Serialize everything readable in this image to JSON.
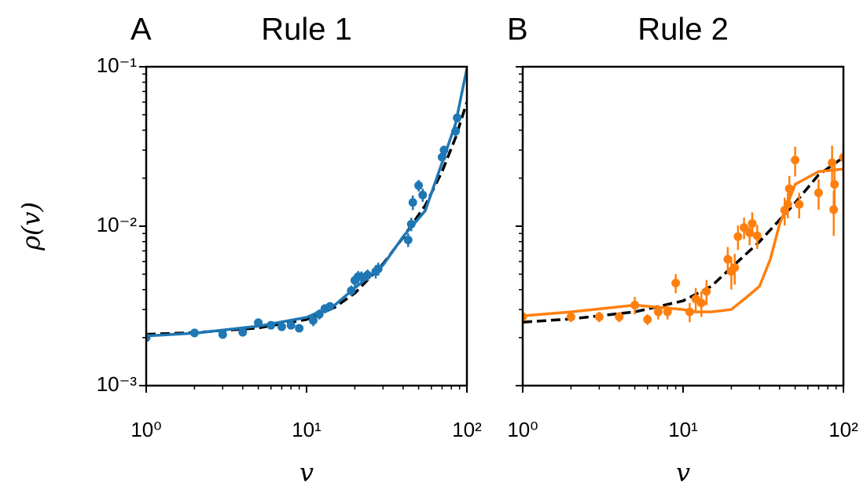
{
  "chart_data": [
    {
      "type": "scatter",
      "panel_label": "A",
      "title": "Rule 1",
      "xlabel": "v",
      "ylabel": "ρ(v)",
      "xscale": "log",
      "yscale": "log",
      "xlim": [
        1,
        100
      ],
      "ylim": [
        0.001,
        0.1
      ],
      "minor_ticks": true,
      "xticks": [
        {
          "value": 1,
          "label": "10⁰"
        },
        {
          "value": 10,
          "label": "10¹"
        },
        {
          "value": 100,
          "label": "10²"
        }
      ],
      "yticks": [
        {
          "value": 0.001,
          "label": "10⁻³"
        },
        {
          "value": 0.01,
          "label": "10⁻²"
        },
        {
          "value": 0.1,
          "label": "10⁻¹"
        }
      ],
      "series": [
        {
          "type": "line",
          "color": "#000000",
          "dashed": true,
          "x": [
            1,
            2,
            5,
            10,
            15,
            20,
            30,
            40,
            55,
            70,
            85,
            100
          ],
          "values": [
            0.0021,
            0.00215,
            0.0023,
            0.0026,
            0.0031,
            0.0038,
            0.0058,
            0.0085,
            0.0135,
            0.022,
            0.036,
            0.06
          ]
        },
        {
          "type": "errorbar",
          "color": "#1f77b4",
          "x": [
            1,
            2,
            3,
            4,
            5,
            6,
            7,
            8,
            9,
            11,
            12,
            13,
            14,
            19,
            20,
            21,
            22,
            24,
            27,
            28,
            43,
            45,
            46,
            50,
            53,
            70,
            72,
            85,
            87
          ],
          "values": [
            0.002,
            0.00214,
            0.00209,
            0.00216,
            0.00248,
            0.00239,
            0.00234,
            0.00239,
            0.00229,
            0.00256,
            0.0028,
            0.00304,
            0.00314,
            0.00394,
            0.00457,
            0.00483,
            0.0048,
            0.00494,
            0.0052,
            0.0054,
            0.0082,
            0.0103,
            0.0141,
            0.018,
            0.0157,
            0.0271,
            0.03,
            0.0394,
            0.0478
          ],
          "errors": [
            0.0001,
            0.0001,
            0.0001,
            0.0001,
            0.00015,
            0.0001,
            0.0001,
            0.0001,
            0.0001,
            0.0002,
            0.0002,
            0.0002,
            0.0002,
            0.0003,
            0.0004,
            0.0004,
            0.0004,
            0.0004,
            0.0005,
            0.0005,
            0.0008,
            0.001,
            0.0015,
            0.0015,
            0.0015,
            0.002,
            0.002,
            0.003,
            0.003
          ]
        },
        {
          "type": "line",
          "color": "#1f77b4",
          "dashed": false,
          "x": [
            1,
            2,
            5,
            10,
            15,
            20,
            30,
            40,
            55,
            70,
            85,
            100
          ],
          "values": [
            0.00205,
            0.00213,
            0.00236,
            0.00268,
            0.0032,
            0.0041,
            0.0057,
            0.0086,
            0.0125,
            0.025,
            0.044,
            0.098
          ]
        }
      ]
    },
    {
      "type": "scatter",
      "panel_label": "B",
      "title": "Rule 2",
      "xlabel": "v",
      "xscale": "log",
      "yscale": "log",
      "xlim": [
        1,
        100
      ],
      "ylim": [
        0.001,
        0.1
      ],
      "minor_ticks": true,
      "ytick_labels": false,
      "xticks": [
        {
          "value": 1,
          "label": "10⁰"
        },
        {
          "value": 10,
          "label": "10¹"
        },
        {
          "value": 100,
          "label": "10²"
        }
      ],
      "yticks": [
        0.001,
        0.01,
        0.1
      ],
      "series": [
        {
          "type": "line",
          "color": "#000000",
          "dashed": true,
          "x": [
            1,
            2,
            5,
            10,
            15,
            20,
            30,
            50,
            70,
            100
          ],
          "values": [
            0.0025,
            0.00262,
            0.0029,
            0.0034,
            0.0042,
            0.0055,
            0.008,
            0.014,
            0.021,
            0.027
          ]
        },
        {
          "type": "errorbar",
          "color": "#ff7f0e",
          "x": [
            1,
            2,
            3,
            4,
            5,
            6,
            7,
            8,
            9,
            11,
            12,
            13,
            14,
            19,
            20,
            21,
            22,
            24,
            26,
            27,
            29,
            43,
            45,
            46,
            50,
            53,
            70,
            85,
            87,
            88,
            100
          ],
          "values": [
            0.0027,
            0.0027,
            0.0027,
            0.0027,
            0.0032,
            0.0026,
            0.0029,
            0.0029,
            0.0044,
            0.0029,
            0.0035,
            0.0033,
            0.0039,
            0.0062,
            0.0052,
            0.0055,
            0.0086,
            0.0098,
            0.0091,
            0.0104,
            0.0087,
            0.0126,
            0.0137,
            0.0172,
            0.026,
            0.0137,
            0.0162,
            0.025,
            0.0127,
            0.0183,
            0.027
          ],
          "errors": [
            0.0002,
            0.0002,
            0.0002,
            0.0002,
            0.0004,
            0.0002,
            0.0003,
            0.0003,
            0.0006,
            0.0004,
            0.0006,
            0.0006,
            0.0007,
            0.0012,
            0.0012,
            0.0012,
            0.0015,
            0.0015,
            0.0015,
            0.0018,
            0.0015,
            0.0025,
            0.0025,
            0.0035,
            0.0055,
            0.0025,
            0.0035,
            0.007,
            0.004,
            0.0055,
            0.007
          ]
        },
        {
          "type": "line",
          "color": "#ff7f0e",
          "dashed": false,
          "x": [
            1,
            2,
            5,
            10,
            12,
            15,
            20,
            25,
            30,
            35,
            40,
            50,
            70,
            100
          ],
          "values": [
            0.00274,
            0.0029,
            0.0032,
            0.003,
            0.0029,
            0.0029,
            0.003,
            0.0036,
            0.0042,
            0.0062,
            0.0103,
            0.0183,
            0.022,
            0.0228
          ]
        }
      ]
    }
  ]
}
